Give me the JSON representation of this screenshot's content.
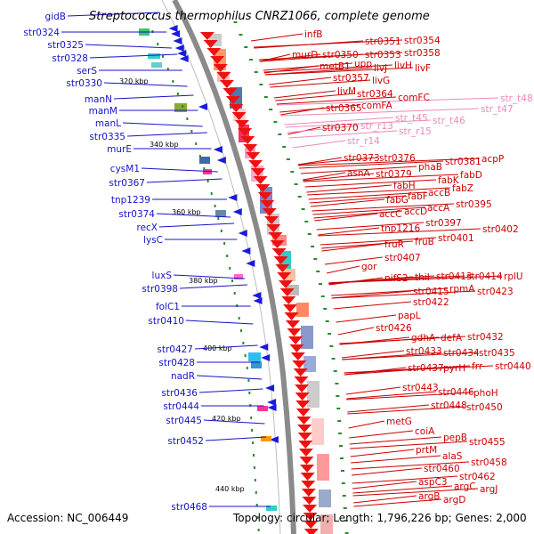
{
  "title": "Streptococcus thermophilus CNRZ1066, complete genome",
  "accession": "Accession: NC_006449",
  "summary": "Topology: circular; Length: 1,796,226 bp; Genes: 2,000",
  "colors": {
    "left_labels": "#1414c8",
    "right_labels": "#cc0000",
    "rna_labels": "#ee88bb",
    "backbone": "#777777",
    "tick_green": "#2a8a2a"
  },
  "kbp_marks": [
    "320 kbp",
    "340 kbp",
    "360 kbp",
    "380 kbp",
    "400 kbp",
    "420 kbp",
    "440 kbp"
  ],
  "left_labels": [
    "gidB",
    "str0324",
    "str0325",
    "str0328",
    "serS",
    "str0330",
    "manN",
    "manM",
    "manL",
    "str0335",
    "murE",
    "cysM1",
    "str0367",
    "tnp1239",
    "str0374",
    "recX",
    "lysC",
    "luxS",
    "str0398",
    "folC1",
    "str0410",
    "str0427",
    "str0428",
    "nadR",
    "str0436",
    "str0444",
    "str0445",
    "str0452",
    "str0468"
  ],
  "right_labels": [
    "infB",
    "str0351",
    "str0354",
    "murD",
    "str0350",
    "str0353",
    "str0358",
    "metB1",
    "upp",
    "livJ",
    "livH",
    "livF",
    "str0357",
    "livG",
    "livM",
    "str0364",
    "comFC",
    "str0365",
    "comFA",
    "str0370",
    "str0373",
    "str0376",
    "acpP",
    "phaB",
    "str0381",
    "asnA",
    "str0379",
    "fabD",
    "fabH",
    "fabK",
    "fabZ",
    "fabG",
    "fabF",
    "accB",
    "accC",
    "accD",
    "accA",
    "str0395",
    "tnp1216",
    "str0397",
    "str0402",
    "fruR",
    "fruB",
    "str0401",
    "str0407",
    "gor",
    "nifS2",
    "thiI",
    "str0413",
    "str0414",
    "rplU",
    "str0415",
    "rpmA",
    "str0423",
    "str0422",
    "papL",
    "str0426",
    "gdhA",
    "defA",
    "str0432",
    "str0433",
    "str0434",
    "str0435",
    "str0437",
    "pyrH",
    "frr",
    "str0440",
    "str0443",
    "str0446",
    "phoH",
    "str0448",
    "str0450",
    "metG",
    "coiA",
    "pepB",
    "str0455",
    "prtM",
    "alaS",
    "str0458",
    "str0460",
    "str0462",
    "aspC3",
    "argC",
    "argJ",
    "argB",
    "argD"
  ],
  "rna_labels": [
    "str_t48",
    "str_t47",
    "str_r13",
    "str_t45",
    "str_t46",
    "str_r15",
    "str_r14"
  ]
}
